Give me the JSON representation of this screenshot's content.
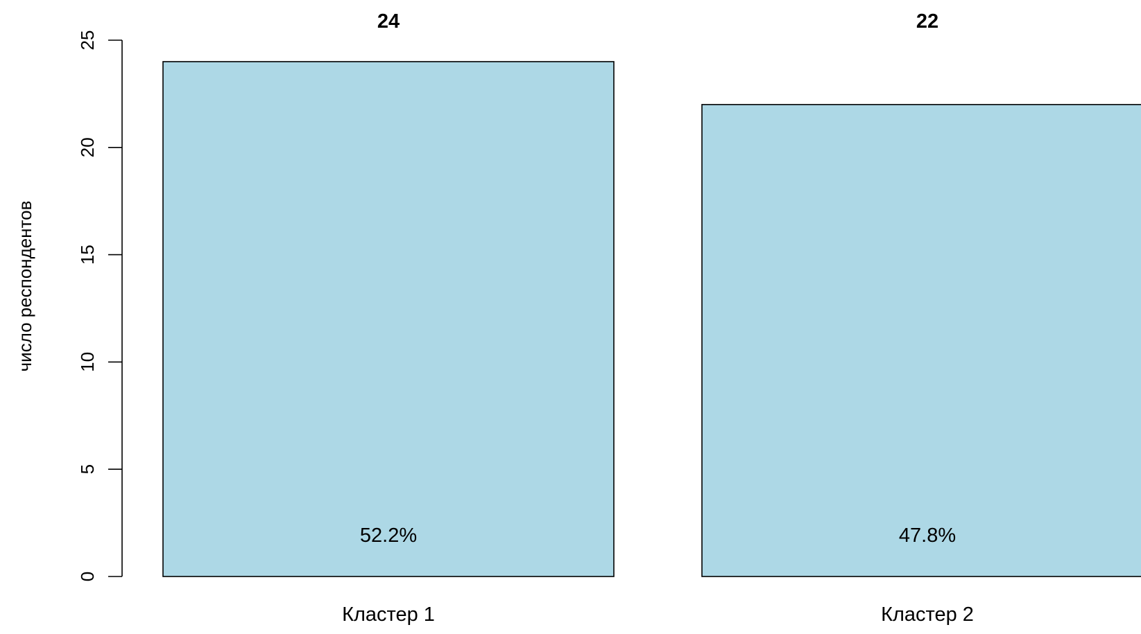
{
  "chart_data": {
    "type": "bar",
    "categories": [
      "Кластер 1",
      "Кластер 2"
    ],
    "values": [
      24,
      22
    ],
    "value_labels": [
      "24",
      "22"
    ],
    "percent_labels": [
      "52.2%",
      "47.8%"
    ],
    "title": "",
    "xlabel": "",
    "ylabel": "число респондентов",
    "ylim": [
      0,
      25
    ],
    "yticks": [
      0,
      5,
      10,
      15,
      20,
      25
    ],
    "grid": false,
    "bar_color": "#add8e6",
    "bar_edge_color": "#000000"
  }
}
